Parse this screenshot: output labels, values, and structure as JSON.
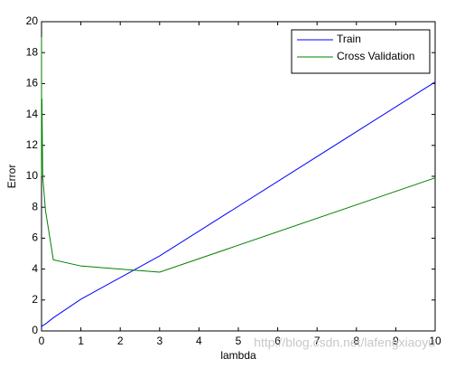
{
  "chart_data": {
    "type": "line",
    "x_label": "lambda",
    "y_label": "Error",
    "x": [
      0,
      0.001,
      0.003,
      0.01,
      0.03,
      0.1,
      0.3,
      1,
      3,
      10
    ],
    "series": [
      {
        "name": "Train",
        "color": "#0000ff",
        "values": [
          0.2,
          0.2,
          0.25,
          0.3,
          0.35,
          0.45,
          0.85,
          2.05,
          4.85,
          16.1
        ]
      },
      {
        "name": "Cross Validation",
        "color": "#008000",
        "values": [
          19,
          10,
          15,
          15,
          10,
          7.8,
          4.6,
          4.2,
          3.8,
          9.9
        ]
      }
    ],
    "xlim": [
      0,
      10
    ],
    "xticks": [
      0,
      1,
      2,
      3,
      4,
      5,
      6,
      7,
      8,
      9,
      10
    ],
    "ylim": [
      0,
      20
    ],
    "yticks": [
      0,
      2,
      4,
      6,
      8,
      10,
      12,
      14,
      16,
      18,
      20
    ],
    "legend": "top-right",
    "watermark": "http://blog.csdn.net/lafengxiaoyu"
  }
}
